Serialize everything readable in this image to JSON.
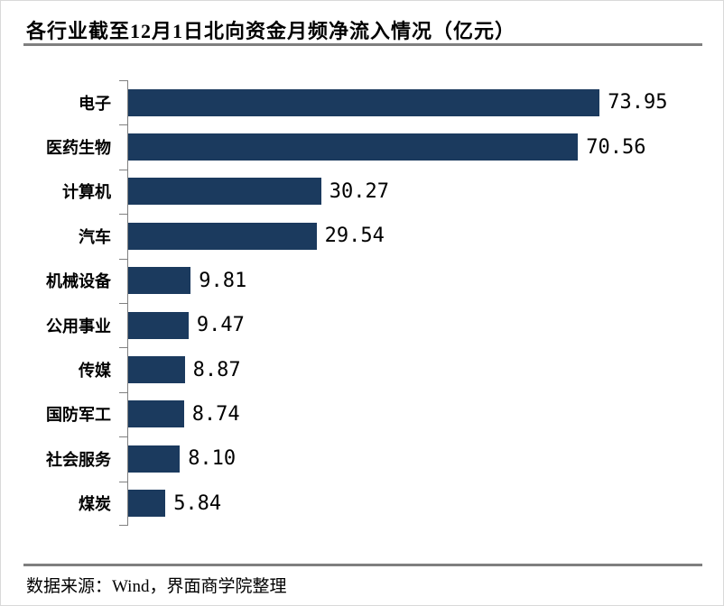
{
  "title": "各行业截至12月1日北向资金月频净流入情况（亿元）",
  "footer": {
    "source_note": "数据来源：Wind，界面商学院整理"
  },
  "colors": {
    "bar": "#1b3a5e",
    "divider": "#7f7f7f",
    "axis": "#808080",
    "text": "#000000",
    "page_border": "#d9d9d9"
  },
  "chart_data": {
    "type": "bar",
    "orientation": "horizontal",
    "title": "各行业截至12月1日北向资金月频净流入情况（亿元）",
    "categories": [
      "电子",
      "医药生物",
      "计算机",
      "汽车",
      "机械设备",
      "公用事业",
      "传媒",
      "国防军工",
      "社会服务",
      "煤炭"
    ],
    "values": [
      73.95,
      70.56,
      30.27,
      29.54,
      9.81,
      9.47,
      8.87,
      8.74,
      8.1,
      5.84
    ],
    "value_labels": [
      "73.95",
      "70.56",
      "30.27",
      "29.54",
      "9.81",
      "9.47",
      "8.87",
      "8.74",
      "8.10",
      "5.84"
    ],
    "xlim": [
      0,
      80
    ],
    "grid": false,
    "legend": "none",
    "data_labels": "outside-end",
    "source_note": "数据来源：Wind，界面商学院整理"
  }
}
